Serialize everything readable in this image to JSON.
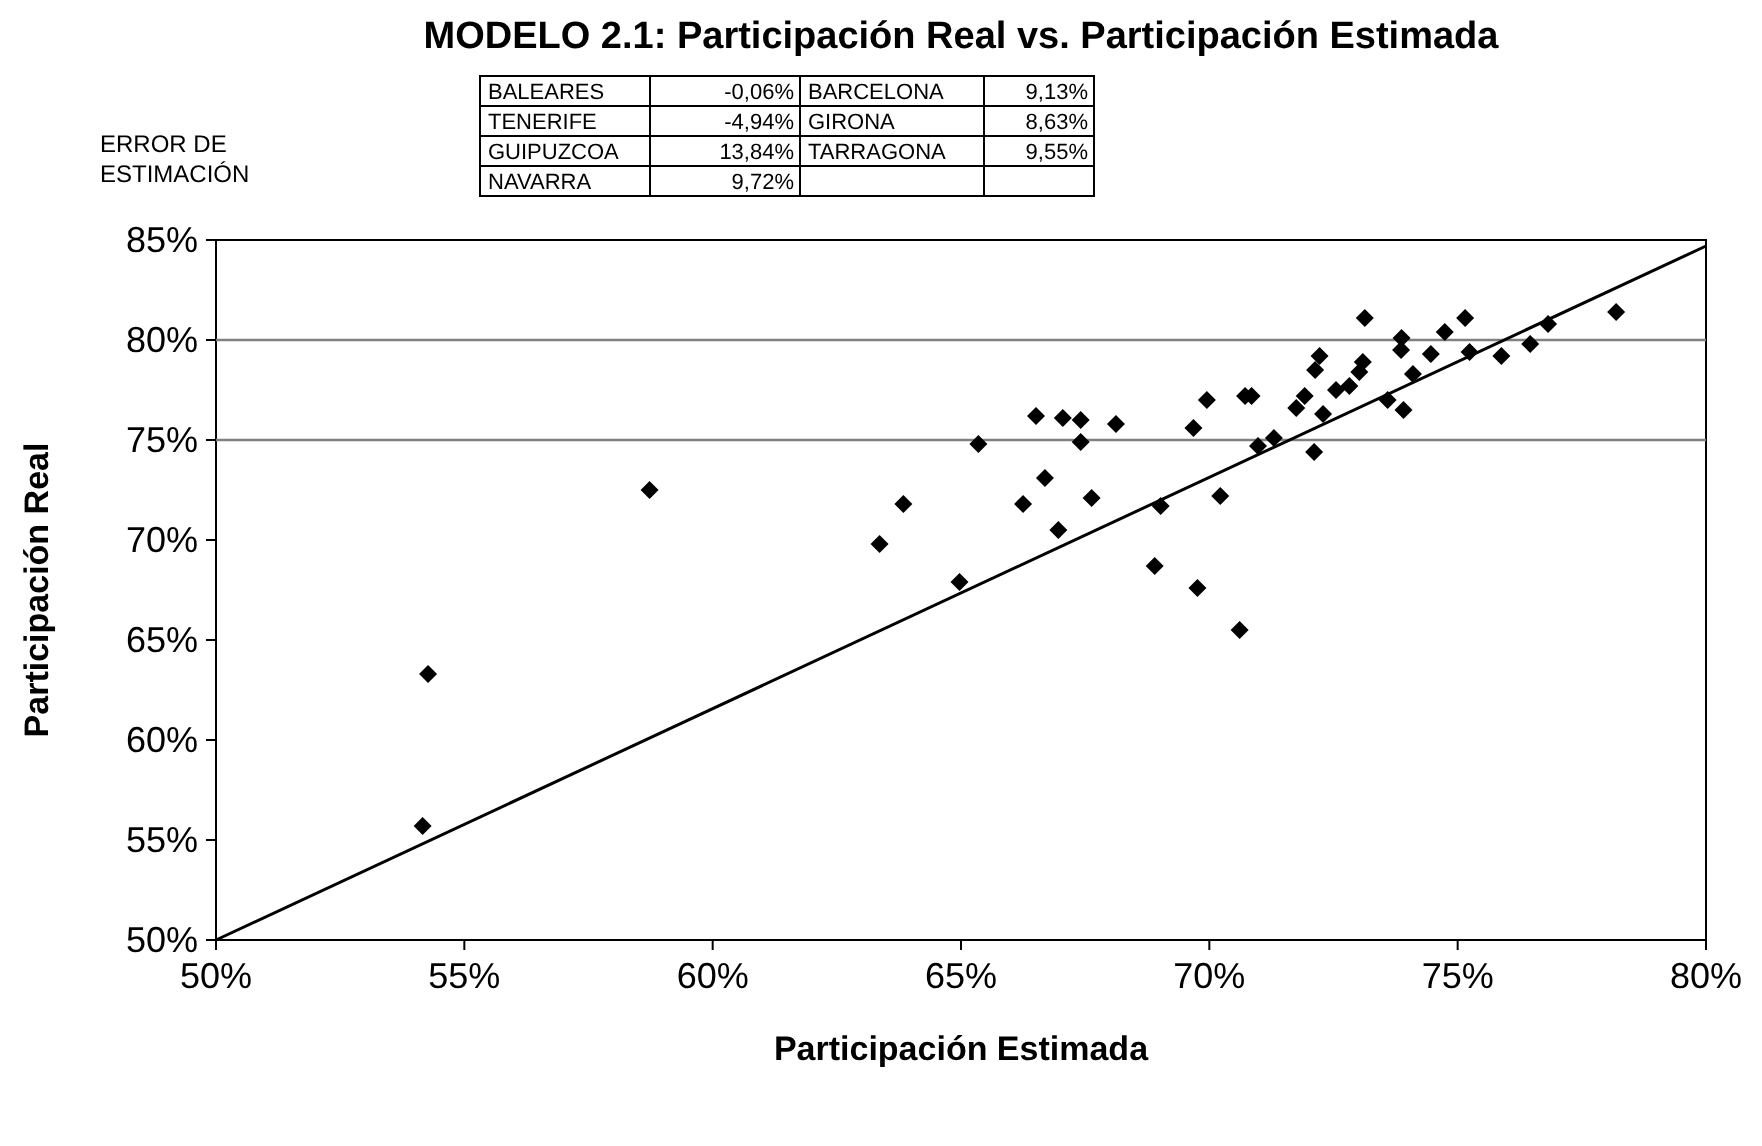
{
  "chart_data": {
    "type": "scatter",
    "title": "MODELO 2.1: Participación Real vs. Participación Estimada",
    "xlabel": "Participación Estimada",
    "ylabel": "Participación Real",
    "xlim": [
      50,
      80
    ],
    "ylim": [
      50,
      85
    ],
    "xticks": [
      {
        "value": 50,
        "label": "50%"
      },
      {
        "value": 55,
        "label": "55%"
      },
      {
        "value": 60,
        "label": "60%"
      },
      {
        "value": 65,
        "label": "65%"
      },
      {
        "value": 70,
        "label": "70%"
      },
      {
        "value": 75,
        "label": "75%"
      },
      {
        "value": 80,
        "label": "80%"
      }
    ],
    "yticks": [
      {
        "value": 50,
        "label": "50%"
      },
      {
        "value": 55,
        "label": "55%"
      },
      {
        "value": 60,
        "label": "60%"
      },
      {
        "value": 65,
        "label": "65%"
      },
      {
        "value": 70,
        "label": "70%"
      },
      {
        "value": 75,
        "label": "75%"
      },
      {
        "value": 80,
        "label": "80%"
      },
      {
        "value": 85,
        "label": "85%"
      }
    ],
    "marker": "diamond",
    "ref_lines": [
      {
        "axis": "y",
        "value": 75,
        "color": "#808080"
      },
      {
        "axis": "y",
        "value": 80,
        "color": "#808080"
      }
    ],
    "annotations": [
      "ERROR DE ESTIMACIÓN",
      "BALEARES",
      "-0,06%",
      "BARCELONA",
      "9,13%",
      "TENERIFE",
      "-4,94%",
      "GIRONA",
      "8,63%",
      "GUIPUZCOA",
      "13,84%",
      "TARRAGONA",
      "9,55%",
      "NAVARRA",
      "9,72%"
    ],
    "series": [
      {
        "color": "#000000",
        "x": [
          54.16,
          54.27,
          58.73,
          63.36,
          63.84,
          64.97,
          65.35,
          66.25,
          66.51,
          66.69,
          66.96,
          67.05,
          67.41,
          67.41,
          67.63,
          68.12,
          68.9,
          69.02,
          69.68,
          69.76,
          69.95,
          70.22,
          70.61,
          70.72,
          70.85,
          70.98,
          71.3,
          71.75,
          71.92,
          72.11,
          72.13,
          72.22,
          72.29,
          72.55,
          72.82,
          73.02,
          73.09,
          73.13,
          73.59,
          73.87,
          73.86,
          73.91,
          74.1,
          74.46,
          74.74,
          75.15,
          75.24,
          75.88,
          76.46,
          76.82,
          78.19
        ],
        "values": [
          55.7,
          63.3,
          72.5,
          69.8,
          71.8,
          67.9,
          74.8,
          71.8,
          76.2,
          73.1,
          70.5,
          76.1,
          76.0,
          74.9,
          72.1,
          75.8,
          68.7,
          71.7,
          75.6,
          67.6,
          77.0,
          72.2,
          65.5,
          77.2,
          77.2,
          74.7,
          75.1,
          76.6,
          77.2,
          74.4,
          78.5,
          79.2,
          76.3,
          77.5,
          77.7,
          78.4,
          78.9,
          81.1,
          77.0,
          80.1,
          79.5,
          76.5,
          78.3,
          79.3,
          80.4,
          81.1,
          79.4,
          79.2,
          79.8,
          80.8,
          81.4
        ]
      },
      {
        "type": "line",
        "marker": "none",
        "color": "#000000",
        "x": [
          50,
          80
        ],
        "values": [
          50,
          84.7
        ]
      }
    ]
  }
}
